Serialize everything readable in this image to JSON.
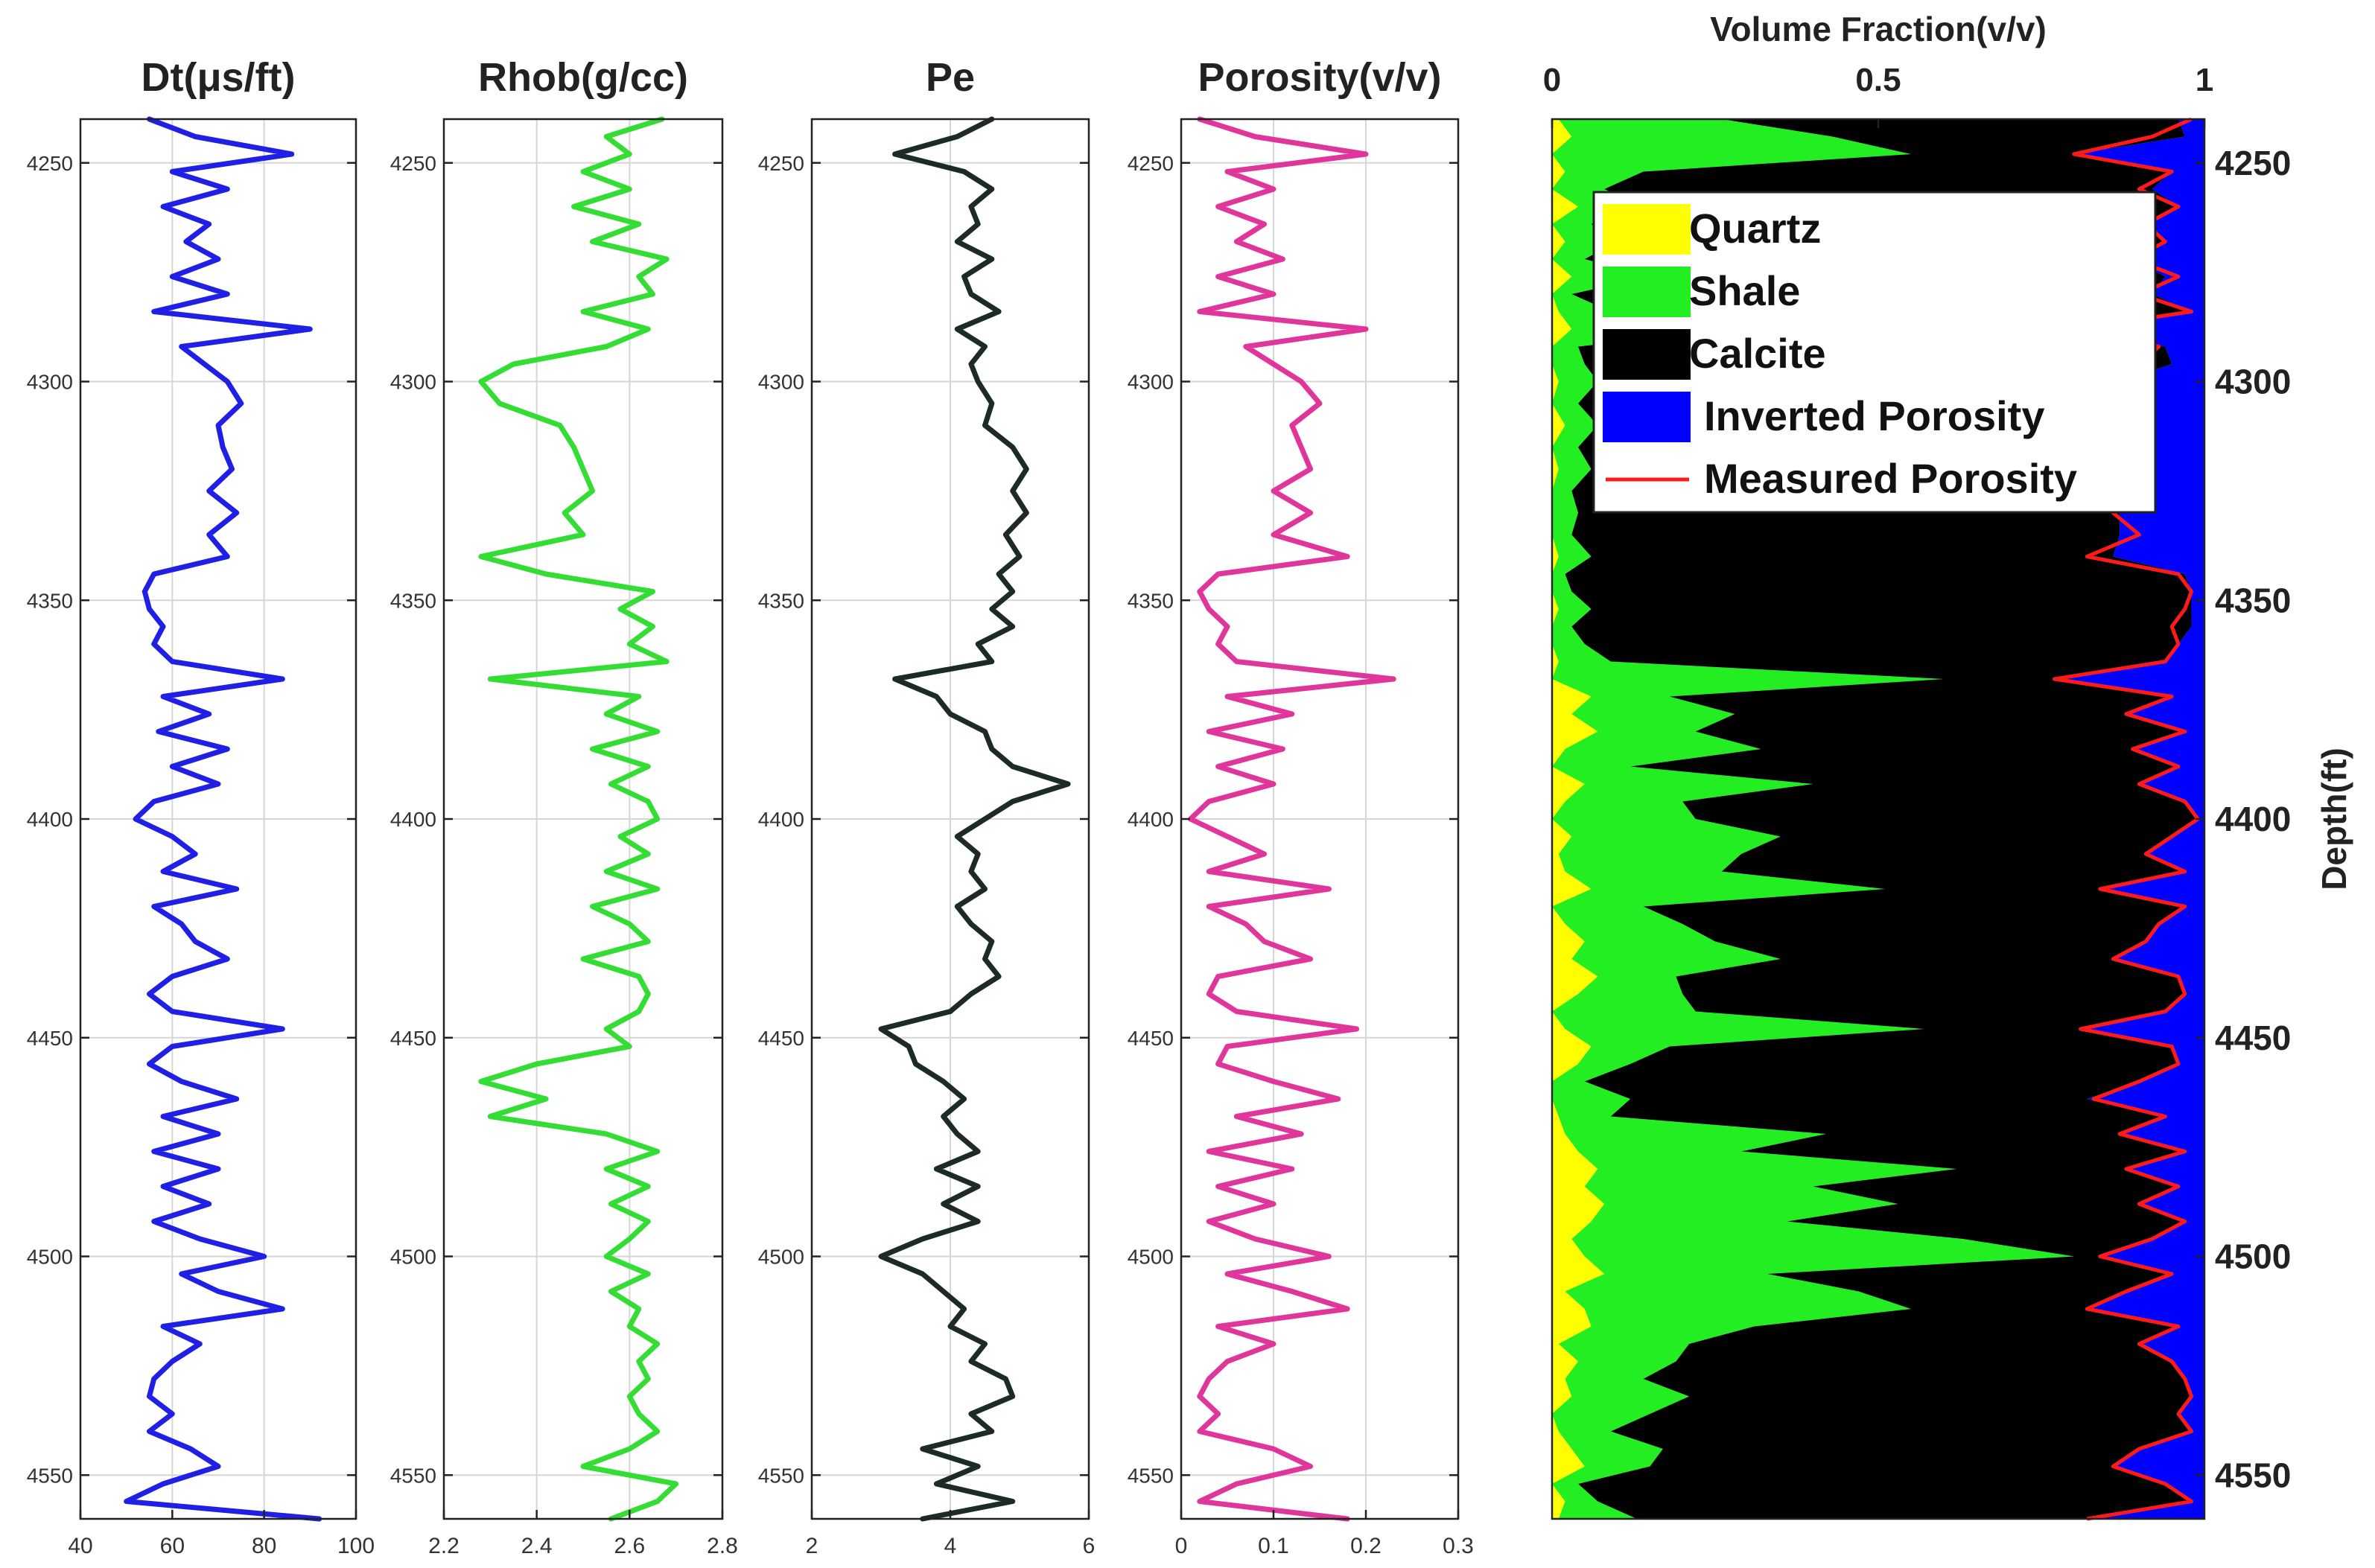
{
  "chart_data": [
    {
      "type": "line",
      "id": "dt",
      "title": "Dt(μs/ft)",
      "color": "#1f1fe6",
      "xlim": [
        40,
        100
      ],
      "xticks": [
        40,
        60,
        80,
        100
      ],
      "ylim": [
        4240,
        4560
      ],
      "yticks": [
        4250,
        4300,
        4350,
        4400,
        4450,
        4500,
        4550
      ],
      "depth": [
        4240,
        4244,
        4248,
        4252,
        4256,
        4260,
        4264,
        4268,
        4272,
        4276,
        4280,
        4284,
        4288,
        4292,
        4296,
        4300,
        4305,
        4310,
        4315,
        4320,
        4325,
        4330,
        4335,
        4340,
        4344,
        4348,
        4352,
        4356,
        4360,
        4364,
        4368,
        4372,
        4376,
        4380,
        4384,
        4388,
        4392,
        4396,
        4400,
        4404,
        4408,
        4412,
        4416,
        4420,
        4424,
        4428,
        4432,
        4436,
        4440,
        4444,
        4448,
        4452,
        4456,
        4460,
        4464,
        4468,
        4472,
        4476,
        4480,
        4484,
        4488,
        4492,
        4496,
        4500,
        4504,
        4508,
        4512,
        4516,
        4520,
        4524,
        4528,
        4532,
        4536,
        4540,
        4544,
        4548,
        4552,
        4556,
        4560
      ],
      "values": [
        55,
        65,
        86,
        60,
        72,
        58,
        68,
        63,
        70,
        60,
        72,
        56,
        90,
        62,
        67,
        72,
        75,
        70,
        71,
        73,
        68,
        74,
        68,
        72,
        56,
        54,
        55,
        58,
        56,
        60,
        84,
        58,
        68,
        57,
        72,
        60,
        70,
        56,
        52,
        60,
        65,
        58,
        74,
        56,
        62,
        65,
        72,
        60,
        55,
        60,
        84,
        60,
        55,
        62,
        74,
        58,
        70,
        56,
        70,
        58,
        68,
        56,
        66,
        80,
        62,
        70,
        84,
        58,
        66,
        60,
        56,
        55,
        60,
        55,
        64,
        70,
        58,
        50,
        92
      ]
    },
    {
      "type": "line",
      "id": "rhob",
      "title": "Rhob(g/cc)",
      "color": "#33dd33",
      "xlim": [
        2.2,
        2.8
      ],
      "xticks": [
        2.2,
        2.4,
        2.6,
        2.8
      ],
      "ylim": [
        4240,
        4560
      ],
      "yticks": [
        4250,
        4300,
        4350,
        4400,
        4450,
        4500,
        4550
      ],
      "depth": [
        4240,
        4244,
        4248,
        4252,
        4256,
        4260,
        4264,
        4268,
        4272,
        4276,
        4280,
        4284,
        4288,
        4292,
        4296,
        4300,
        4305,
        4310,
        4315,
        4320,
        4325,
        4330,
        4335,
        4340,
        4344,
        4348,
        4352,
        4356,
        4360,
        4364,
        4368,
        4372,
        4376,
        4380,
        4384,
        4388,
        4392,
        4396,
        4400,
        4404,
        4408,
        4412,
        4416,
        4420,
        4424,
        4428,
        4432,
        4436,
        4440,
        4444,
        4448,
        4452,
        4456,
        4460,
        4464,
        4468,
        4472,
        4476,
        4480,
        4484,
        4488,
        4492,
        4496,
        4500,
        4504,
        4508,
        4512,
        4516,
        4520,
        4524,
        4528,
        4532,
        4536,
        4540,
        4544,
        4548,
        4552,
        4556,
        4560
      ],
      "values": [
        2.67,
        2.55,
        2.6,
        2.5,
        2.6,
        2.48,
        2.62,
        2.52,
        2.68,
        2.62,
        2.65,
        2.5,
        2.64,
        2.55,
        2.35,
        2.28,
        2.32,
        2.45,
        2.48,
        2.5,
        2.52,
        2.46,
        2.5,
        2.28,
        2.42,
        2.65,
        2.58,
        2.65,
        2.6,
        2.68,
        2.3,
        2.62,
        2.55,
        2.66,
        2.52,
        2.64,
        2.56,
        2.64,
        2.66,
        2.58,
        2.64,
        2.55,
        2.66,
        2.52,
        2.6,
        2.64,
        2.5,
        2.62,
        2.64,
        2.62,
        2.55,
        2.6,
        2.4,
        2.28,
        2.42,
        2.3,
        2.55,
        2.66,
        2.55,
        2.64,
        2.56,
        2.64,
        2.6,
        2.55,
        2.64,
        2.56,
        2.62,
        2.6,
        2.66,
        2.62,
        2.64,
        2.6,
        2.62,
        2.66,
        2.6,
        2.5,
        2.7,
        2.66,
        2.56
      ]
    },
    {
      "type": "line",
      "id": "pe",
      "title": "Pe",
      "color": "#1c2a28",
      "xlim": [
        2,
        6
      ],
      "xticks": [
        2,
        4,
        6
      ],
      "ylim": [
        4240,
        4560
      ],
      "yticks": [
        4250,
        4300,
        4350,
        4400,
        4450,
        4500,
        4550
      ],
      "depth": [
        4240,
        4244,
        4248,
        4252,
        4256,
        4260,
        4264,
        4268,
        4272,
        4276,
        4280,
        4284,
        4288,
        4292,
        4296,
        4300,
        4305,
        4310,
        4315,
        4320,
        4325,
        4330,
        4335,
        4340,
        4344,
        4348,
        4352,
        4356,
        4360,
        4364,
        4368,
        4372,
        4376,
        4380,
        4384,
        4388,
        4392,
        4396,
        4400,
        4404,
        4408,
        4412,
        4416,
        4420,
        4424,
        4428,
        4432,
        4436,
        4440,
        4444,
        4448,
        4452,
        4456,
        4460,
        4464,
        4468,
        4472,
        4476,
        4480,
        4484,
        4488,
        4492,
        4496,
        4500,
        4504,
        4508,
        4512,
        4516,
        4520,
        4524,
        4528,
        4532,
        4536,
        4540,
        4544,
        4548,
        4552,
        4556,
        4560
      ],
      "values": [
        4.6,
        4.1,
        3.2,
        4.2,
        4.6,
        4.3,
        4.4,
        4.1,
        4.6,
        4.2,
        4.3,
        4.7,
        4.1,
        4.5,
        4.3,
        4.4,
        4.6,
        4.5,
        4.9,
        5.1,
        4.9,
        5.1,
        4.8,
        5.0,
        4.7,
        4.9,
        4.6,
        4.9,
        4.4,
        4.6,
        3.2,
        3.8,
        4.0,
        4.5,
        4.6,
        4.9,
        5.7,
        4.9,
        4.5,
        4.1,
        4.4,
        4.3,
        4.5,
        4.1,
        4.3,
        4.6,
        4.5,
        4.7,
        4.3,
        4.0,
        3.0,
        3.4,
        3.5,
        3.9,
        4.2,
        3.9,
        4.1,
        4.4,
        3.8,
        4.4,
        3.9,
        4.4,
        3.6,
        3.0,
        3.6,
        3.9,
        4.2,
        4.0,
        4.5,
        4.3,
        4.8,
        4.9,
        4.3,
        4.6,
        3.6,
        4.4,
        3.8,
        4.9,
        3.6
      ]
    },
    {
      "type": "line",
      "id": "porosity",
      "title": "Porosity(v/v)",
      "color": "#e0369b",
      "xlim": [
        0,
        0.3
      ],
      "xticks": [
        0,
        0.1,
        0.2,
        0.3
      ],
      "ylim": [
        4240,
        4560
      ],
      "yticks": [
        4250,
        4300,
        4350,
        4400,
        4450,
        4500,
        4550
      ],
      "depth": [
        4240,
        4244,
        4248,
        4252,
        4256,
        4260,
        4264,
        4268,
        4272,
        4276,
        4280,
        4284,
        4288,
        4292,
        4296,
        4300,
        4305,
        4310,
        4315,
        4320,
        4325,
        4330,
        4335,
        4340,
        4344,
        4348,
        4352,
        4356,
        4360,
        4364,
        4368,
        4372,
        4376,
        4380,
        4384,
        4388,
        4392,
        4396,
        4400,
        4404,
        4408,
        4412,
        4416,
        4420,
        4424,
        4428,
        4432,
        4436,
        4440,
        4444,
        4448,
        4452,
        4456,
        4460,
        4464,
        4468,
        4472,
        4476,
        4480,
        4484,
        4488,
        4492,
        4496,
        4500,
        4504,
        4508,
        4512,
        4516,
        4520,
        4524,
        4528,
        4532,
        4536,
        4540,
        4544,
        4548,
        4552,
        4556,
        4560
      ],
      "values": [
        0.02,
        0.08,
        0.2,
        0.05,
        0.1,
        0.04,
        0.09,
        0.06,
        0.11,
        0.04,
        0.1,
        0.02,
        0.2,
        0.07,
        0.1,
        0.13,
        0.15,
        0.12,
        0.13,
        0.14,
        0.1,
        0.14,
        0.1,
        0.18,
        0.04,
        0.02,
        0.03,
        0.05,
        0.04,
        0.06,
        0.23,
        0.05,
        0.12,
        0.03,
        0.11,
        0.04,
        0.1,
        0.03,
        0.01,
        0.05,
        0.09,
        0.03,
        0.16,
        0.03,
        0.07,
        0.09,
        0.14,
        0.04,
        0.03,
        0.06,
        0.19,
        0.05,
        0.04,
        0.1,
        0.17,
        0.06,
        0.13,
        0.03,
        0.12,
        0.04,
        0.1,
        0.03,
        0.08,
        0.16,
        0.05,
        0.12,
        0.18,
        0.04,
        0.1,
        0.05,
        0.03,
        0.02,
        0.04,
        0.02,
        0.1,
        0.14,
        0.06,
        0.02,
        0.18
      ]
    },
    {
      "type": "area",
      "id": "volume",
      "title": "Volume Fraction(v/v)",
      "xlim": [
        0,
        1
      ],
      "xticks": [
        0,
        0.5,
        1
      ],
      "ylim": [
        4240,
        4560
      ],
      "yticks": [
        4250,
        4300,
        4350,
        4400,
        4450,
        4500,
        4550
      ],
      "ylabel": "Depth(ft)",
      "depth": [
        4240,
        4244,
        4248,
        4252,
        4256,
        4260,
        4264,
        4268,
        4272,
        4276,
        4280,
        4284,
        4288,
        4292,
        4296,
        4300,
        4305,
        4310,
        4315,
        4320,
        4325,
        4330,
        4335,
        4340,
        4344,
        4348,
        4352,
        4356,
        4360,
        4364,
        4368,
        4372,
        4376,
        4380,
        4384,
        4388,
        4392,
        4396,
        4400,
        4404,
        4408,
        4412,
        4416,
        4420,
        4424,
        4428,
        4432,
        4436,
        4440,
        4444,
        4448,
        4452,
        4456,
        4460,
        4464,
        4468,
        4472,
        4476,
        4480,
        4484,
        4488,
        4492,
        4496,
        4500,
        4504,
        4508,
        4512,
        4516,
        4520,
        4524,
        4528,
        4532,
        4536,
        4540,
        4544,
        4548,
        4552,
        4556,
        4560
      ],
      "series": [
        {
          "name": "Quartz",
          "color": "#ffff00",
          "values": [
            0.01,
            0.03,
            0.0,
            0.02,
            0.0,
            0.04,
            0.0,
            0.02,
            0.0,
            0.03,
            0.0,
            0.01,
            0.03,
            0.0,
            0.0,
            0.01,
            0.0,
            0.02,
            0.0,
            0.01,
            0.0,
            0.0,
            0.0,
            0.01,
            0.0,
            0.0,
            0.01,
            0.0,
            0.0,
            0.01,
            0.0,
            0.06,
            0.03,
            0.07,
            0.02,
            0.0,
            0.05,
            0.02,
            0.0,
            0.03,
            0.01,
            0.02,
            0.06,
            0.0,
            0.02,
            0.05,
            0.03,
            0.07,
            0.04,
            0.0,
            0.02,
            0.06,
            0.04,
            0.0,
            0.0,
            0.01,
            0.02,
            0.04,
            0.07,
            0.05,
            0.08,
            0.06,
            0.03,
            0.05,
            0.08,
            0.02,
            0.05,
            0.06,
            0.01,
            0.04,
            0.02,
            0.03,
            0.0,
            0.01,
            0.03,
            0.05,
            0.0,
            0.02,
            0.01
          ]
        },
        {
          "name": "Shale",
          "color": "#22ee22",
          "values": [
            0.25,
            0.4,
            0.55,
            0.12,
            0.08,
            0.1,
            0.06,
            0.08,
            0.05,
            0.12,
            0.03,
            0.08,
            0.25,
            0.04,
            0.05,
            0.06,
            0.04,
            0.05,
            0.04,
            0.05,
            0.03,
            0.04,
            0.03,
            0.05,
            0.02,
            0.03,
            0.05,
            0.03,
            0.05,
            0.08,
            0.6,
            0.12,
            0.25,
            0.15,
            0.3,
            0.12,
            0.35,
            0.18,
            0.22,
            0.32,
            0.28,
            0.24,
            0.45,
            0.14,
            0.18,
            0.2,
            0.32,
            0.12,
            0.16,
            0.22,
            0.55,
            0.12,
            0.08,
            0.05,
            0.12,
            0.08,
            0.4,
            0.25,
            0.55,
            0.35,
            0.45,
            0.3,
            0.6,
            0.75,
            0.25,
            0.45,
            0.5,
            0.25,
            0.2,
            0.15,
            0.12,
            0.18,
            0.15,
            0.08,
            0.14,
            0.1,
            0.04,
            0.05,
            0.12
          ]
        },
        {
          "name": "Calcite",
          "color": "#000000",
          "values": [
            0.7,
            0.54,
            0.25,
            0.81,
            0.84,
            0.82,
            0.85,
            0.84,
            0.84,
            0.79,
            0.89,
            0.89,
            0.52,
            0.9,
            0.9,
            0.8,
            0.81,
            0.8,
            0.83,
            0.8,
            0.84,
            0.83,
            0.84,
            0.8,
            0.95,
            0.95,
            0.92,
            0.95,
            0.91,
            0.85,
            0.17,
            0.77,
            0.6,
            0.75,
            0.57,
            0.84,
            0.5,
            0.77,
            0.77,
            0.6,
            0.62,
            0.71,
            0.33,
            0.83,
            0.73,
            0.66,
            0.51,
            0.77,
            0.77,
            0.72,
            0.24,
            0.77,
            0.84,
            0.85,
            0.7,
            0.85,
            0.45,
            0.68,
            0.26,
            0.56,
            0.37,
            0.61,
            0.29,
            0.04,
            0.62,
            0.41,
            0.27,
            0.65,
            0.69,
            0.76,
            0.83,
            0.77,
            0.81,
            0.89,
            0.73,
            0.71,
            0.9,
            0.91,
            0.69
          ]
        },
        {
          "name": "Inverted Porosity",
          "color": "#0000ff",
          "values": [
            0.04,
            0.03,
            0.2,
            0.05,
            0.08,
            0.04,
            0.09,
            0.06,
            0.11,
            0.06,
            0.08,
            0.02,
            0.2,
            0.06,
            0.05,
            0.13,
            0.15,
            0.13,
            0.13,
            0.14,
            0.13,
            0.13,
            0.13,
            0.14,
            0.03,
            0.02,
            0.02,
            0.02,
            0.04,
            0.06,
            0.23,
            0.05,
            0.12,
            0.03,
            0.11,
            0.04,
            0.1,
            0.03,
            0.01,
            0.05,
            0.09,
            0.03,
            0.16,
            0.03,
            0.07,
            0.09,
            0.14,
            0.04,
            0.03,
            0.06,
            0.19,
            0.05,
            0.04,
            0.1,
            0.18,
            0.06,
            0.13,
            0.03,
            0.12,
            0.04,
            0.1,
            0.03,
            0.08,
            0.16,
            0.05,
            0.12,
            0.18,
            0.04,
            0.1,
            0.05,
            0.03,
            0.02,
            0.04,
            0.02,
            0.1,
            0.14,
            0.06,
            0.02,
            0.18
          ]
        }
      ],
      "line_series": {
        "name": "Measured Porosity",
        "color": "#ff1a1a",
        "values": [
          0.02,
          0.08,
          0.2,
          0.05,
          0.1,
          0.04,
          0.09,
          0.06,
          0.11,
          0.04,
          0.1,
          0.02,
          0.2,
          0.07,
          0.1,
          0.13,
          0.15,
          0.12,
          0.13,
          0.14,
          0.1,
          0.14,
          0.1,
          0.18,
          0.04,
          0.02,
          0.03,
          0.05,
          0.04,
          0.06,
          0.23,
          0.05,
          0.12,
          0.03,
          0.11,
          0.04,
          0.1,
          0.03,
          0.01,
          0.05,
          0.09,
          0.03,
          0.16,
          0.03,
          0.07,
          0.09,
          0.14,
          0.04,
          0.03,
          0.06,
          0.19,
          0.05,
          0.04,
          0.1,
          0.17,
          0.06,
          0.13,
          0.03,
          0.12,
          0.04,
          0.1,
          0.03,
          0.08,
          0.16,
          0.05,
          0.12,
          0.18,
          0.04,
          0.1,
          0.05,
          0.03,
          0.02,
          0.04,
          0.02,
          0.1,
          0.14,
          0.06,
          0.02,
          0.18
        ]
      },
      "legend": [
        "Quartz",
        "Shale",
        "Calcite",
        "Inverted Porosity",
        "Measured Porosity"
      ],
      "legend_position": "top-right"
    }
  ]
}
